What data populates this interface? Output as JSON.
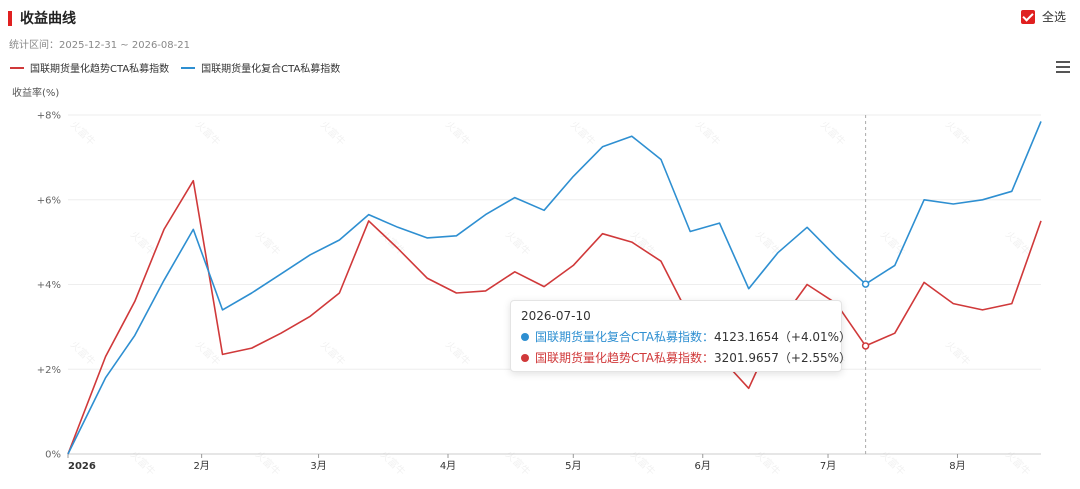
{
  "header": {
    "title": "收益曲线",
    "range": "统计区间：2025-12-31 ~ 2026-08-21",
    "select_all": "全选"
  },
  "legend": [
    {
      "label": "国联期货量化趋势CTA私募指数",
      "color": "#d0393a"
    },
    {
      "label": "国联期货量化复合CTA私募指数",
      "color": "#2e8fd1"
    }
  ],
  "yaxis_title": "收益率(%)",
  "icons": {
    "menu": "hamburger-menu-icon",
    "checkbox": "checkbox-checked-icon"
  },
  "watermark_text": "火富牛",
  "tooltip": {
    "date": "2026-07-10",
    "rows": [
      {
        "name": "国联期货量化复合CTA私募指数：",
        "value": "4123.1654（+4.01%）",
        "color": "#2e8fd1"
      },
      {
        "name": "国联期货量化趋势CTA私募指数：",
        "value": "3201.9657（+2.55%）",
        "color": "#d0393a"
      }
    ]
  },
  "chart_data": {
    "type": "line",
    "ylim": [
      0,
      8
    ],
    "yticks": [
      "0%",
      "+2%",
      "+4%",
      "+6%",
      "+8%"
    ],
    "xlim": [
      "2025-12-31",
      "2026-08-21"
    ],
    "xticks": [
      {
        "label": "2026",
        "date": "2025-12-31"
      },
      {
        "label": "2月",
        "date": "2026-02-01"
      },
      {
        "label": "3月",
        "date": "2026-03-01"
      },
      {
        "label": "4月",
        "date": "2026-04-01"
      },
      {
        "label": "5月",
        "date": "2026-05-01"
      },
      {
        "label": "6月",
        "date": "2026-06-01"
      },
      {
        "label": "7月",
        "date": "2026-07-01"
      },
      {
        "label": "8月",
        "date": "2026-08-01"
      }
    ],
    "highlight_date": "2026-07-10",
    "x": [
      "2025-12-31",
      "2026-01-09",
      "2026-01-16",
      "2026-01-23",
      "2026-01-30",
      "2026-02-06",
      "2026-02-13",
      "2026-02-20",
      "2026-02-27",
      "2026-03-06",
      "2026-03-13",
      "2026-03-20",
      "2026-03-27",
      "2026-04-03",
      "2026-04-10",
      "2026-04-17",
      "2026-04-24",
      "2026-05-01",
      "2026-05-08",
      "2026-05-15",
      "2026-05-22",
      "2026-05-29",
      "2026-06-05",
      "2026-06-12",
      "2026-06-19",
      "2026-06-26",
      "2026-07-03",
      "2026-07-10",
      "2026-07-17",
      "2026-07-24",
      "2026-07-31",
      "2026-08-07",
      "2026-08-14",
      "2026-08-21"
    ],
    "series": [
      {
        "name": "国联期货量化复合CTA私募指数",
        "color": "#2e8fd1",
        "values": [
          0,
          1.8,
          2.8,
          4.1,
          5.3,
          3.4,
          3.8,
          4.25,
          4.7,
          5.05,
          5.65,
          5.35,
          5.1,
          5.15,
          5.65,
          6.05,
          5.75,
          6.55,
          7.25,
          7.5,
          6.95,
          5.25,
          5.45,
          3.9,
          4.75,
          5.35,
          4.65,
          4.01,
          4.45,
          6.0,
          5.9,
          6.0,
          6.2,
          7.85
        ]
      },
      {
        "name": "国联期货量化趋势CTA私募指数",
        "color": "#d0393a",
        "values": [
          0,
          2.3,
          3.6,
          5.3,
          6.45,
          2.35,
          2.5,
          2.85,
          3.25,
          3.8,
          5.5,
          4.85,
          4.15,
          3.8,
          3.85,
          4.3,
          3.95,
          4.45,
          5.2,
          5.0,
          4.55,
          3.2,
          2.3,
          1.55,
          3.05,
          4.0,
          3.55,
          2.55,
          2.85,
          4.05,
          3.55,
          3.4,
          3.55,
          5.5
        ]
      }
    ]
  }
}
